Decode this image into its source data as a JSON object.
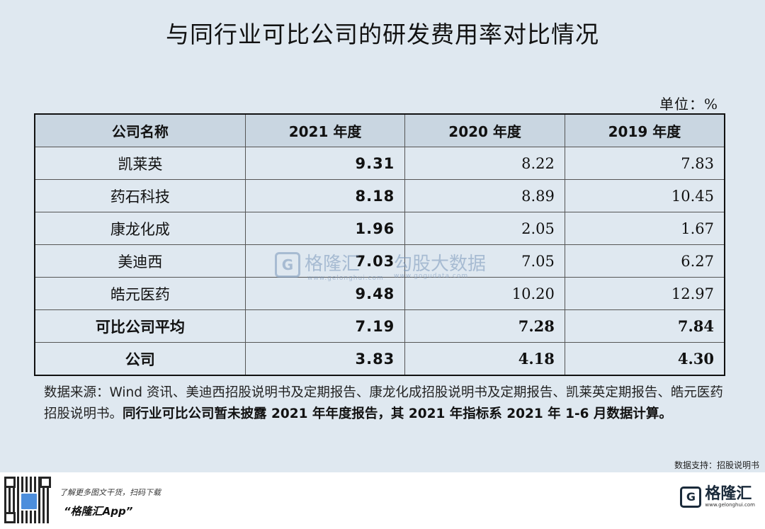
{
  "title": "与同行业可比公司的研发费用率对比情况",
  "unit": "单位：%",
  "table": {
    "headers": [
      "公司名称",
      "2021 年度",
      "2020 年度",
      "2019 年度"
    ],
    "rows": [
      {
        "name": "凯莱英",
        "y2021": "9.31",
        "y2020": "8.22",
        "y2019": "7.83"
      },
      {
        "name": "药石科技",
        "y2021": "8.18",
        "y2020": "8.89",
        "y2019": "10.45"
      },
      {
        "name": "康龙化成",
        "y2021": "1.96",
        "y2020": "2.05",
        "y2019": "1.67"
      },
      {
        "name": "美迪西",
        "y2021": "7.03",
        "y2020": "7.05",
        "y2019": "6.27"
      },
      {
        "name": "皓元医药",
        "y2021": "9.48",
        "y2020": "10.20",
        "y2019": "12.97"
      },
      {
        "name": "可比公司平均",
        "y2021": "7.19",
        "y2020": "7.28",
        "y2019": "7.84"
      },
      {
        "name": "公司",
        "y2021": "3.83",
        "y2020": "4.18",
        "y2019": "4.30"
      }
    ]
  },
  "note": {
    "normal": "数据来源：Wind 资讯、美迪西招股说明书及定期报告、康龙化成招股说明书及定期报告、凯莱英定期报告、皓元医药招股说明书。",
    "bold": "同行业可比公司暂未披露 2021 年年度报告，其 2021 年指标系 2021 年 1-6 月数据计算。"
  },
  "watermark": {
    "logo_char": "G",
    "brand": "格隆汇",
    "brand_url": "www.gelonghui.com",
    "brand2": "勾股大数据",
    "brand2_url": "www.gogudata.com"
  },
  "support_text": "数据支持：招股说明书",
  "footer": {
    "promo_line1": "了解更多图文干货，扫码下载",
    "promo_line2": "“格隆汇App”",
    "brand_logo_char": "G",
    "brand_name": "格隆汇",
    "brand_url": "www.gelonghui.com"
  },
  "icons": {
    "qr": "qr-code-icon",
    "logo": "gelonghui-logo-icon"
  }
}
